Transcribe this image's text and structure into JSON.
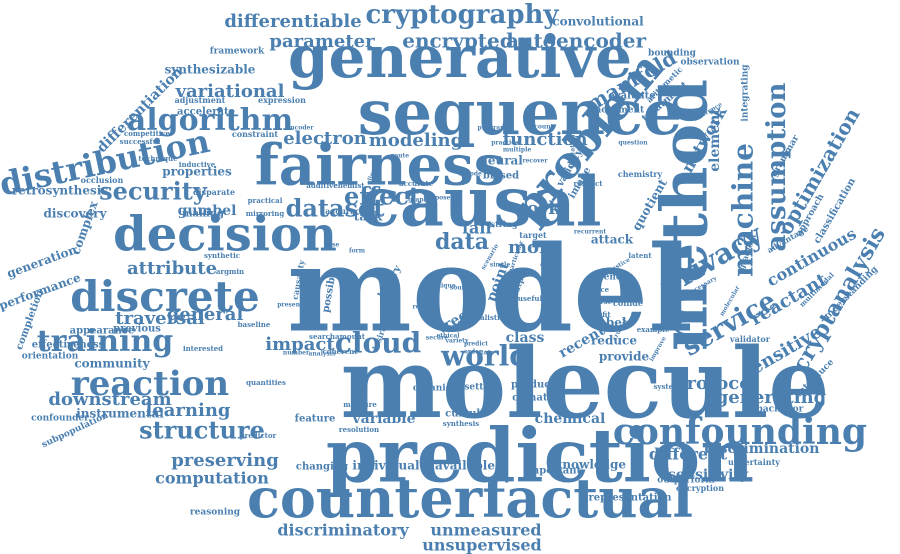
{
  "color": "#4a7fb0",
  "words": [
    {
      "text": "model",
      "weight": 100,
      "rotate": 0
    },
    {
      "text": "molecule",
      "weight": 88,
      "rotate": 0
    },
    {
      "text": "prediction",
      "weight": 72,
      "rotate": 0
    },
    {
      "text": "causal",
      "weight": 64,
      "rotate": 0
    },
    {
      "text": "method",
      "weight": 62,
      "rotate": -90
    },
    {
      "text": "sequence",
      "weight": 60,
      "rotate": 0
    },
    {
      "text": "generative",
      "weight": 56,
      "rotate": 0
    },
    {
      "text": "fairness",
      "weight": 54,
      "rotate": 0
    },
    {
      "text": "counterfactual",
      "weight": 52,
      "rotate": 0
    },
    {
      "text": "decision",
      "weight": 46,
      "rotate": 0
    },
    {
      "text": "problem",
      "weight": 44,
      "rotate": -50
    },
    {
      "text": "discrete",
      "weight": 40,
      "rotate": 0
    },
    {
      "text": "confounding",
      "weight": 36,
      "rotate": 0
    },
    {
      "text": "reaction",
      "weight": 34,
      "rotate": 0
    },
    {
      "text": "distribution",
      "weight": 32,
      "rotate": -12
    },
    {
      "text": "training",
      "weight": 32,
      "rotate": 0
    },
    {
      "text": "algorithm",
      "weight": 30,
      "rotate": 0
    },
    {
      "text": "cryptography",
      "weight": 28,
      "rotate": 0
    },
    {
      "text": "machine",
      "weight": 28,
      "rotate": -90
    },
    {
      "text": "privacy",
      "weight": 28,
      "rotate": -30
    },
    {
      "text": "service",
      "weight": 28,
      "rotate": -30
    },
    {
      "text": "assumption",
      "weight": 26,
      "rotate": -90
    },
    {
      "text": "world",
      "weight": 26,
      "rotate": 0
    },
    {
      "text": "cloud",
      "weight": 26,
      "rotate": 0
    },
    {
      "text": "structure",
      "weight": 26,
      "rotate": 0
    },
    {
      "text": "security",
      "weight": 24,
      "rotate": 0
    },
    {
      "text": "dataset",
      "weight": 24,
      "rotate": 0
    },
    {
      "text": "effect",
      "weight": 24,
      "rotate": 0
    },
    {
      "text": "cryptanalysis",
      "weight": 24,
      "rotate": -60
    },
    {
      "text": "manifold",
      "weight": 22,
      "rotate": -30
    },
    {
      "text": "optimization",
      "weight": 22,
      "rotate": -60
    },
    {
      "text": "autoencoder",
      "weight": 22,
      "rotate": 0
    },
    {
      "text": "encrypted",
      "weight": 22,
      "rotate": 0
    },
    {
      "text": "parameter",
      "weight": 20,
      "rotate": 0
    },
    {
      "text": "differentiable",
      "weight": 20,
      "rotate": 0
    },
    {
      "text": "variational",
      "weight": 20,
      "rotate": 0
    },
    {
      "text": "attribute",
      "weight": 20,
      "rotate": 0
    },
    {
      "text": "traversal",
      "weight": 20,
      "rotate": 0
    },
    {
      "text": "general",
      "weight": 20,
      "rotate": 0
    },
    {
      "text": "impact",
      "weight": 20,
      "rotate": 0
    },
    {
      "text": "learning",
      "weight": 20,
      "rotate": 0
    },
    {
      "text": "downstream",
      "weight": 20,
      "rotate": 0
    },
    {
      "text": "preserving",
      "weight": 20,
      "rotate": 0
    },
    {
      "text": "computation",
      "weight": 18,
      "rotate": 0
    },
    {
      "text": "modeling",
      "weight": 20,
      "rotate": 0
    },
    {
      "text": "function",
      "weight": 20,
      "rotate": 0
    },
    {
      "text": "electron",
      "weight": 20,
      "rotate": 0
    },
    {
      "text": "protocol",
      "weight": 20,
      "rotate": 0
    },
    {
      "text": "generating",
      "weight": 20,
      "rotate": 0
    },
    {
      "text": "sensitive",
      "weight": 20,
      "rotate": -30
    },
    {
      "text": "reactant",
      "weight": 20,
      "rotate": -30
    },
    {
      "text": "continuous",
      "weight": 18,
      "rotate": -30
    },
    {
      "text": "different",
      "weight": 18,
      "rotate": 0
    },
    {
      "text": "sensitivity",
      "weight": 16,
      "rotate": 0
    },
    {
      "text": "discrimination",
      "weight": 16,
      "rotate": 0
    },
    {
      "text": "discriminatory",
      "weight": 18,
      "rotate": 0
    },
    {
      "text": "unmeasured",
      "weight": 18,
      "rotate": 0
    },
    {
      "text": "unsupervised",
      "weight": 18,
      "rotate": 0
    },
    {
      "text": "chemical",
      "weight": 16,
      "rotate": 0
    },
    {
      "text": "variable",
      "weight": 16,
      "rotate": 0
    },
    {
      "text": "data",
      "weight": 22,
      "rotate": 0
    },
    {
      "text": "more",
      "weight": 18,
      "rotate": 0
    },
    {
      "text": "work",
      "weight": 18,
      "rotate": 0
    },
    {
      "text": "fair",
      "weight": 18,
      "rotate": 0
    },
    {
      "text": "point",
      "weight": 16,
      "rotate": -70
    },
    {
      "text": "tree",
      "weight": 16,
      "rotate": -30
    },
    {
      "text": "class",
      "weight": 16,
      "rotate": 0
    },
    {
      "text": "recent",
      "weight": 16,
      "rotate": -30
    },
    {
      "text": "reduce",
      "weight": 14,
      "rotate": 0
    },
    {
      "text": "provide",
      "weight": 14,
      "rotate": 0
    },
    {
      "text": "label",
      "weight": 14,
      "rotate": 0
    },
    {
      "text": "network",
      "weight": 18,
      "rotate": -60
    },
    {
      "text": "element",
      "weight": 16,
      "rotate": -90
    },
    {
      "text": "quotient",
      "weight": 14,
      "rotate": -60
    },
    {
      "text": "attack",
      "weight": 14,
      "rotate": 0
    },
    {
      "text": "gumbel",
      "weight": 16,
      "rotate": 0
    },
    {
      "text": "properties",
      "weight": 14,
      "rotate": 0
    },
    {
      "text": "making",
      "weight": 12,
      "rotate": 0
    },
    {
      "text": "task",
      "weight": 14,
      "rotate": 0
    },
    {
      "text": "generation",
      "weight": 14,
      "rotate": -20
    },
    {
      "text": "performance",
      "weight": 14,
      "rotate": -20
    },
    {
      "text": "complex",
      "weight": 14,
      "rotate": -70
    },
    {
      "text": "discovery",
      "weight": 14,
      "rotate": 0
    },
    {
      "text": "retrosynthesis",
      "weight": 14,
      "rotate": 0
    },
    {
      "text": "differentiation",
      "weight": 16,
      "rotate": -45
    },
    {
      "text": "synthesizable",
      "weight": 14,
      "rotate": 0
    },
    {
      "text": "accelerate",
      "weight": 12,
      "rotate": 0
    },
    {
      "text": "framework",
      "weight": 10,
      "rotate": 0
    },
    {
      "text": "convolutional",
      "weight": 14,
      "rotate": 0
    },
    {
      "text": "bounding",
      "weight": 10,
      "rotate": 0
    },
    {
      "text": "observation",
      "weight": 10,
      "rotate": 0
    },
    {
      "text": "evaluate",
      "weight": 12,
      "rotate": 0
    },
    {
      "text": "treatment",
      "weight": 12,
      "rotate": -40
    },
    {
      "text": "movement",
      "weight": 10,
      "rotate": 0
    },
    {
      "text": "validity",
      "weight": 12,
      "rotate": -60
    },
    {
      "text": "image",
      "weight": 12,
      "rotate": -60
    },
    {
      "text": "neural",
      "weight": 14,
      "rotate": 0
    },
    {
      "text": "biased",
      "weight": 12,
      "rotate": 0
    },
    {
      "text": "community",
      "weight": 14,
      "rotate": 0
    },
    {
      "text": "effectiveness",
      "weight": 12,
      "rotate": 0
    },
    {
      "text": "orientation",
      "weight": 10,
      "rotate": 0
    },
    {
      "text": "completion",
      "weight": 12,
      "rotate": -70
    },
    {
      "text": "appearance",
      "weight": 12,
      "rotate": 0
    },
    {
      "text": "previous",
      "weight": 12,
      "rotate": 0
    },
    {
      "text": "instrumental",
      "weight": 14,
      "rotate": 0
    },
    {
      "text": "confounder",
      "weight": 10,
      "rotate": 0
    },
    {
      "text": "subpopulation",
      "weight": 10,
      "rotate": -25
    },
    {
      "text": "reasoning",
      "weight": 10,
      "rotate": 0
    },
    {
      "text": "changing",
      "weight": 12,
      "rotate": 0
    },
    {
      "text": "individual",
      "weight": 14,
      "rotate": 0
    },
    {
      "text": "available",
      "weight": 14,
      "rotate": 0
    },
    {
      "text": "important",
      "weight": 12,
      "rotate": 0
    },
    {
      "text": "knowledge",
      "weight": 14,
      "rotate": 0
    },
    {
      "text": "representation",
      "weight": 12,
      "rotate": 0
    },
    {
      "text": "outperform",
      "weight": 10,
      "rotate": 0
    },
    {
      "text": "encryption",
      "weight": 9,
      "rotate": 0
    },
    {
      "text": "uncertainty",
      "weight": 9,
      "rotate": 0
    },
    {
      "text": "backdoor",
      "weight": 10,
      "rotate": 0
    },
    {
      "text": "introduce",
      "weight": 10,
      "rotate": -45
    },
    {
      "text": "understanding",
      "weight": 10,
      "rotate": -45
    },
    {
      "text": "feature",
      "weight": 12,
      "rotate": 0
    },
    {
      "text": "cumulo",
      "weight": 12,
      "rotate": 0
    },
    {
      "text": "product",
      "weight": 12,
      "rotate": 0
    },
    {
      "text": "climate",
      "weight": 12,
      "rotate": 0
    },
    {
      "text": "setting",
      "weight": 10,
      "rotate": 0
    },
    {
      "text": "grammar",
      "weight": 10,
      "rotate": -60
    },
    {
      "text": "approach",
      "weight": 10,
      "rotate": -60
    },
    {
      "text": "classification",
      "weight": 12,
      "rotate": -60
    },
    {
      "text": "arithmetic",
      "weight": 9,
      "rotate": -45
    },
    {
      "text": "integrating",
      "weight": 10,
      "rotate": -90
    },
    {
      "text": "chemistry",
      "weight": 9,
      "rotate": 0
    },
    {
      "text": "gradient",
      "weight": 9,
      "rotate": -70
    },
    {
      "text": "advantage",
      "weight": 9,
      "rotate": -30
    },
    {
      "text": "multimodal",
      "weight": 8,
      "rotate": -45
    },
    {
      "text": "validator",
      "weight": 8,
      "rotate": 0
    },
    {
      "text": "constraint",
      "weight": 9,
      "rotate": 0
    },
    {
      "text": "adjustment",
      "weight": 9,
      "rotate": 0
    },
    {
      "text": "expression",
      "weight": 9,
      "rotate": 0
    },
    {
      "text": "competitive",
      "weight": 8,
      "rotate": 0
    },
    {
      "text": "technique",
      "weight": 8,
      "rotate": 0
    },
    {
      "text": "successful",
      "weight": 8,
      "rotate": 0
    },
    {
      "text": "inductive",
      "weight": 8,
      "rotate": 0
    },
    {
      "text": "practical",
      "weight": 8,
      "rotate": 0
    },
    {
      "text": "mirroring",
      "weight": 8,
      "rotate": 0
    },
    {
      "text": "additive",
      "weight": 8,
      "rotate": 0
    },
    {
      "text": "chemist",
      "weight": 8,
      "rotate": 0
    },
    {
      "text": "accurate",
      "weight": 8,
      "rotate": 0
    },
    {
      "text": "accuracy",
      "weight": 9,
      "rotate": 0
    },
    {
      "text": "disparate",
      "weight": 8,
      "rotate": 0
    },
    {
      "text": "occlusion",
      "weight": 9,
      "rotate": 0
    },
    {
      "text": "synthetic",
      "weight": 8,
      "rotate": 0
    },
    {
      "text": "argmin",
      "weight": 8,
      "rotate": 0
    },
    {
      "text": "causality",
      "weight": 9,
      "rotate": -80
    },
    {
      "text": "possible",
      "weight": 10,
      "rotate": -80
    },
    {
      "text": "binary",
      "weight": 10,
      "rotate": -60
    },
    {
      "text": "path",
      "weight": 9,
      "rotate": -70
    },
    {
      "text": "output",
      "weight": 9,
      "rotate": -70
    },
    {
      "text": "useful",
      "weight": 8,
      "rotate": 0
    },
    {
      "text": "realistic",
      "weight": 9,
      "rotate": 0
    },
    {
      "text": "string",
      "weight": 9,
      "rotate": 0
    },
    {
      "text": "target",
      "weight": 8,
      "rotate": 0
    },
    {
      "text": "party",
      "weight": 10,
      "rotate": -70
    },
    {
      "text": "gender",
      "weight": 8,
      "rotate": 0
    },
    {
      "text": "latent",
      "weight": 8,
      "rotate": 0
    },
    {
      "text": "space",
      "weight": 8,
      "rotate": 0
    },
    {
      "text": "diverse",
      "weight": 9,
      "rotate": 0
    },
    {
      "text": "collide",
      "weight": 8,
      "rotate": 0
    },
    {
      "text": "benefit",
      "weight": 7,
      "rotate": 0
    },
    {
      "text": "crucial",
      "weight": 8,
      "rotate": -60
    },
    {
      "text": "example",
      "weight": 8,
      "rotate": 0
    },
    {
      "text": "system",
      "weight": 9,
      "rotate": 0
    },
    {
      "text": "desirable",
      "weight": 10,
      "rotate": -70
    },
    {
      "text": "organic",
      "weight": 8,
      "rotate": 0
    },
    {
      "text": "coherent",
      "weight": 8,
      "rotate": 0
    },
    {
      "text": "synthesis",
      "weight": 8,
      "rotate": 0
    },
    {
      "text": "measure",
      "weight": 8,
      "rotate": 0
    },
    {
      "text": "resolution",
      "weight": 8,
      "rotate": 0
    },
    {
      "text": "predictor",
      "weight": 8,
      "rotate": 0
    },
    {
      "text": "quantities",
      "weight": 8,
      "rotate": 0
    },
    {
      "text": "interested",
      "weight": 8,
      "rotate": 0
    },
    {
      "text": "baseline",
      "weight": 8,
      "rotate": 0
    },
    {
      "text": "search",
      "weight": 8,
      "rotate": 0
    },
    {
      "text": "amount",
      "weight": 7,
      "rotate": 0
    },
    {
      "text": "number",
      "weight": 7,
      "rotate": 0
    },
    {
      "text": "analysis",
      "weight": 8,
      "rotate": 0
    },
    {
      "text": "respect",
      "weight": 7,
      "rotate": 0
    },
    {
      "text": "recurrent",
      "weight": 7,
      "rotate": 0
    },
    {
      "text": "encoder",
      "weight": 7,
      "rotate": 0
    },
    {
      "text": "program",
      "weight": 7,
      "rotate": 0
    },
    {
      "text": "account",
      "weight": 7,
      "rotate": 0
    },
    {
      "text": "practice",
      "weight": 7,
      "rotate": 0
    },
    {
      "text": "multiple",
      "weight": 7,
      "rotate": 0
    },
    {
      "text": "recover",
      "weight": 7,
      "rotate": 0
    },
    {
      "text": "limitation",
      "weight": 7,
      "rotate": -90
    },
    {
      "text": "inference",
      "weight": 7,
      "rotate": -30
    },
    {
      "text": "necessary",
      "weight": 7,
      "rotate": -30
    },
    {
      "text": "molecular",
      "weight": 7,
      "rotate": -60
    },
    {
      "text": "improve",
      "weight": 7,
      "rotate": -60
    },
    {
      "text": "question",
      "weight": 7,
      "rotate": 0
    },
    {
      "text": "justice",
      "weight": 7,
      "rotate": -30
    },
    {
      "text": "ethical",
      "weight": 7,
      "rotate": 0
    },
    {
      "text": "decode",
      "weight": 7,
      "rotate": 0
    },
    {
      "text": "order",
      "weight": 7,
      "rotate": 0
    },
    {
      "text": "predict",
      "weight": 7,
      "rotate": 0
    },
    {
      "text": "variety",
      "weight": 7,
      "rotate": 0
    },
    {
      "text": "report",
      "weight": 7,
      "rotate": 0
    },
    {
      "text": "secure",
      "weight": 7,
      "rotate": 0
    },
    {
      "text": "state",
      "weight": 7,
      "rotate": 0
    },
    {
      "text": "route",
      "weight": 7,
      "rotate": 0
    },
    {
      "text": "case",
      "weight": 7,
      "rotate": 0
    },
    {
      "text": "form",
      "weight": 7,
      "rotate": 0
    },
    {
      "text": "graph",
      "weight": 7,
      "rotate": 0
    },
    {
      "text": "propose",
      "weight": 7,
      "rotate": 0
    },
    {
      "text": "client",
      "weight": 7,
      "rotate": -70
    },
    {
      "text": "present",
      "weight": 7,
      "rotate": 0
    },
    {
      "text": "unique",
      "weight": 7,
      "rotate": 0
    },
    {
      "text": "source",
      "weight": 7,
      "rotate": 0
    },
    {
      "text": "scenario",
      "weight": 7,
      "rotate": -60
    },
    {
      "text": "particular",
      "weight": 7,
      "rotate": -70
    },
    {
      "text": "single",
      "weight": 7,
      "rotate": 0
    },
    {
      "text": "solve",
      "weight": 7,
      "rotate": 0
    },
    {
      "text": "goal",
      "weight": 7,
      "rotate": -70
    },
    {
      "text": "train",
      "weight": 7,
      "rotate": 0
    },
    {
      "text": "estimate",
      "weight": 7,
      "rotate": -70
    }
  ]
}
